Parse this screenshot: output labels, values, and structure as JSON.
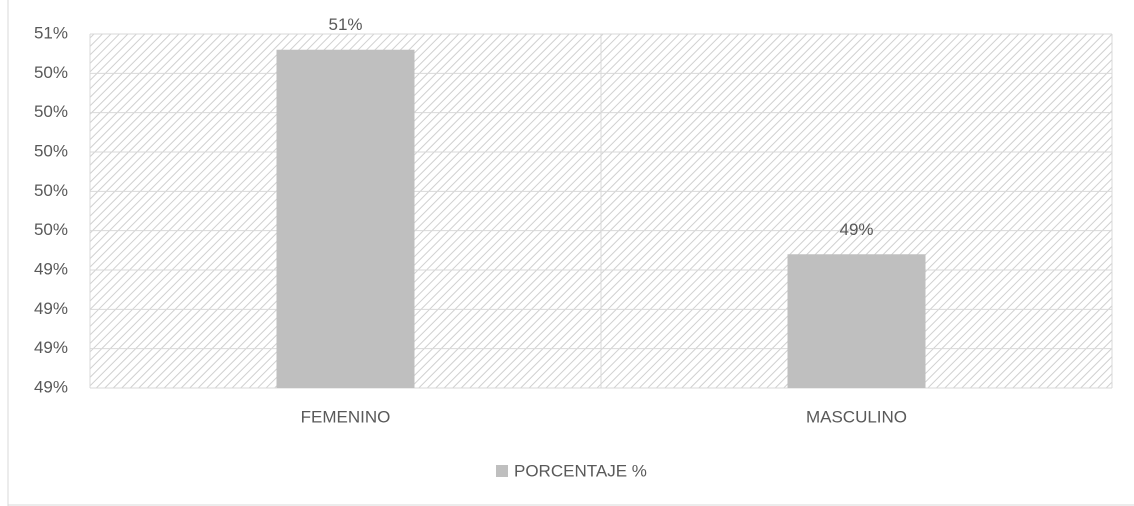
{
  "chart_data": {
    "type": "bar",
    "categories": [
      "FEMENINO",
      "MASCULINO"
    ],
    "series": [
      {
        "name": "PORCENTAJE %",
        "color": "#bfbfbf",
        "values": [
          50.52,
          49.48
        ],
        "value_labels": [
          "51%",
          "49%"
        ]
      }
    ],
    "ylim": [
      48.8,
      50.6
    ],
    "yticks": [
      {
        "value": 48.8,
        "label": "49%"
      },
      {
        "value": 49.0,
        "label": "49%"
      },
      {
        "value": 49.2,
        "label": "49%"
      },
      {
        "value": 49.4,
        "label": "49%"
      },
      {
        "value": 49.6,
        "label": "50%"
      },
      {
        "value": 49.8,
        "label": "50%"
      },
      {
        "value": 50.0,
        "label": "50%"
      },
      {
        "value": 50.2,
        "label": "50%"
      },
      {
        "value": 50.4,
        "label": "50%"
      },
      {
        "value": 50.6,
        "label": "51%"
      }
    ],
    "grid": true,
    "legend": "bottom"
  }
}
